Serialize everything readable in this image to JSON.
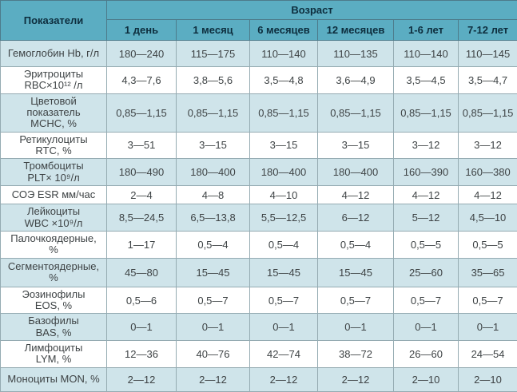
{
  "colors": {
    "header_bg": "#5BADC2",
    "header_text": "#0D2D3D",
    "row_alt_bg": "#CFE4EA",
    "row_bg": "#FFFFFF",
    "body_text": "#3E4345",
    "border": "#95ABB2",
    "header_border": "#4D7B8B"
  },
  "chart_data": {
    "type": "table",
    "corner_header": "Показатели",
    "group_header": "Возраст",
    "columns": [
      "1 день",
      "1 месяц",
      "6 месяцев",
      "12 месяцев",
      "1-6 лет",
      "7-12 лет"
    ],
    "rows": [
      {
        "label": "Гемоглобин Hb, г/л",
        "values": [
          "180—240",
          "115—175",
          "110—140",
          "110—135",
          "110—140",
          "110—145"
        ]
      },
      {
        "label": "Эритроциты\nRBC×10¹² /л",
        "values": [
          "4,3—7,6",
          "3,8—5,6",
          "3,5—4,8",
          "3,6—4,9",
          "3,5—4,5",
          "3,5—4,7"
        ]
      },
      {
        "label": "Цветовой\nпоказатель\nМСНС, %",
        "values": [
          "0,85—1,15",
          "0,85—1,15",
          "0,85—1,15",
          "0,85—1,15",
          "0,85—1,15",
          "0,85—1,15"
        ]
      },
      {
        "label": "Ретикулоциты\nRTC, %",
        "values": [
          "3—51",
          "3—15",
          "3—15",
          "3—15",
          "3—12",
          "3—12"
        ]
      },
      {
        "label": "Тромбоциты\nPLT× 10⁹/л",
        "values": [
          "180—490",
          "180—400",
          "180—400",
          "180—400",
          "160—390",
          "160—380"
        ]
      },
      {
        "label": "СОЭ ESR мм/час",
        "values": [
          "2—4",
          "4—8",
          "4—10",
          "4—12",
          "4—12",
          "4—12"
        ]
      },
      {
        "label": "Лейкоциты\nWBC ×10⁹/л",
        "values": [
          "8,5—24,5",
          "6,5—13,8",
          "5,5—12,5",
          "6—12",
          "5—12",
          "4,5—10"
        ]
      },
      {
        "label": "Палочкоядерные,\n%",
        "values": [
          "1—17",
          "0,5—4",
          "0,5—4",
          "0,5—4",
          "0,5—5",
          "0,5—5"
        ]
      },
      {
        "label": "Сегментоядерные,\n%",
        "values": [
          "45—80",
          "15—45",
          "15—45",
          "15—45",
          "25—60",
          "35—65"
        ]
      },
      {
        "label": "Эозинофилы\nEOS, %",
        "values": [
          "0,5—6",
          "0,5—7",
          "0,5—7",
          "0,5—7",
          "0,5—7",
          "0,5—7"
        ]
      },
      {
        "label": "Базофилы\nBAS, %",
        "values": [
          "0—1",
          "0—1",
          "0—1",
          "0—1",
          "0—1",
          "0—1"
        ]
      },
      {
        "label": "Лимфоциты\nLYM, %",
        "values": [
          "12—36",
          "40—76",
          "42—74",
          "38—72",
          "26—60",
          "24—54"
        ]
      },
      {
        "label": "Моноциты MON, %",
        "values": [
          "2—12",
          "2—12",
          "2—12",
          "2—12",
          "2—10",
          "2—10"
        ]
      }
    ]
  }
}
